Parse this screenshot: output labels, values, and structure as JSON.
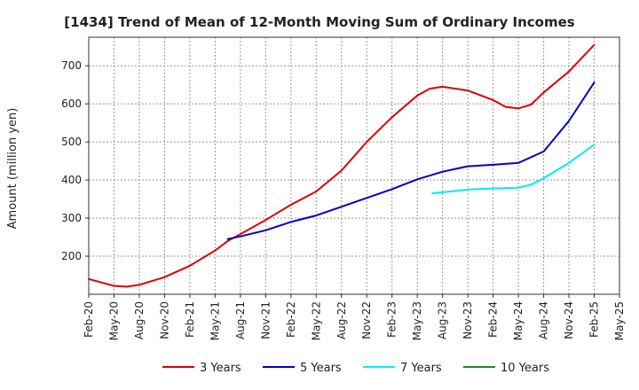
{
  "chart_data": {
    "type": "line",
    "title": "[1434]  Trend of Mean of 12-Month Moving Sum of Ordinary Incomes",
    "xlabel": "",
    "ylabel": "Amount (million yen)",
    "ylim": [
      100,
      775
    ],
    "yticks": [
      200,
      300,
      400,
      500,
      600,
      700
    ],
    "x_labels": [
      "Feb-20",
      "May-20",
      "Aug-20",
      "Nov-20",
      "Feb-21",
      "May-21",
      "Aug-21",
      "Nov-21",
      "Feb-22",
      "May-22",
      "Aug-22",
      "Nov-22",
      "Feb-23",
      "May-23",
      "Aug-23",
      "Nov-23",
      "Feb-24",
      "May-24",
      "Aug-24",
      "Nov-24",
      "Feb-25",
      "May-25"
    ],
    "grid": true,
    "legend_position": "bottom",
    "series": [
      {
        "name": "3 Years",
        "color": "#dd0000",
        "points": [
          [
            0,
            140
          ],
          [
            1,
            122
          ],
          [
            1.5,
            120
          ],
          [
            2,
            125
          ],
          [
            3,
            145
          ],
          [
            4,
            175
          ],
          [
            5,
            215
          ],
          [
            5.5,
            240
          ],
          [
            6,
            258
          ],
          [
            7,
            295
          ],
          [
            8,
            335
          ],
          [
            9,
            370
          ],
          [
            10,
            425
          ],
          [
            11,
            500
          ],
          [
            12,
            565
          ],
          [
            13,
            622
          ],
          [
            13.5,
            640
          ],
          [
            14,
            645
          ],
          [
            15,
            635
          ],
          [
            16,
            610
          ],
          [
            16.5,
            592
          ],
          [
            17,
            588
          ],
          [
            17.5,
            598
          ],
          [
            18,
            630
          ],
          [
            19,
            685
          ],
          [
            20,
            755
          ]
        ]
      },
      {
        "name": "5 Years",
        "color": "#0000cc",
        "points": [
          [
            5.5,
            245
          ],
          [
            6,
            252
          ],
          [
            7,
            268
          ],
          [
            8,
            290
          ],
          [
            9,
            307
          ],
          [
            10,
            330
          ],
          [
            11,
            353
          ],
          [
            12,
            376
          ],
          [
            13,
            402
          ],
          [
            14,
            422
          ],
          [
            15,
            436
          ],
          [
            16,
            440
          ],
          [
            17,
            445
          ],
          [
            18,
            475
          ],
          [
            19,
            555
          ],
          [
            20,
            656
          ]
        ]
      },
      {
        "name": "7 Years",
        "color": "#00eeee",
        "points": [
          [
            13.6,
            365
          ],
          [
            14,
            368
          ],
          [
            15,
            375
          ],
          [
            16,
            378
          ],
          [
            17,
            380
          ],
          [
            17.5,
            388
          ],
          [
            18,
            405
          ],
          [
            19,
            445
          ],
          [
            20,
            493
          ]
        ]
      },
      {
        "name": "10 Years",
        "color": "#228822",
        "points": []
      }
    ]
  }
}
